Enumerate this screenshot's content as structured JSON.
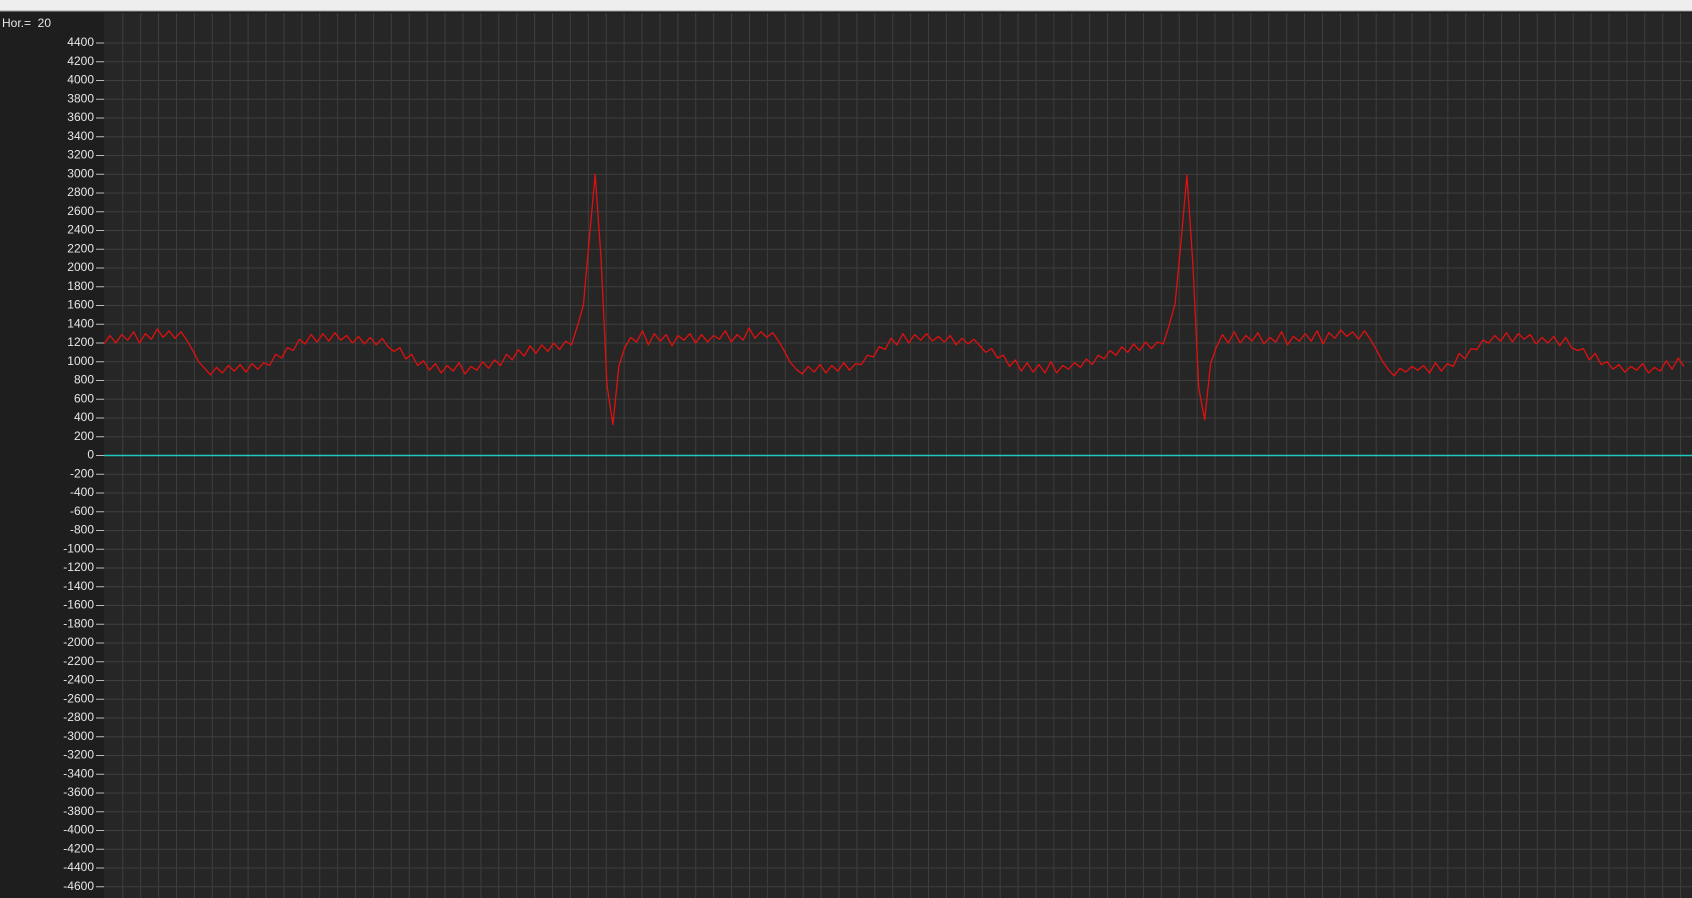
{
  "chart_data": {
    "type": "line",
    "annotation": "Hor.=  20",
    "ylim": [
      -4720,
      4720
    ],
    "yticks": [
      4400,
      4200,
      4000,
      3800,
      3600,
      3400,
      3200,
      3000,
      2800,
      2600,
      2400,
      2200,
      2000,
      1800,
      1600,
      1400,
      1200,
      1000,
      800,
      600,
      400,
      200,
      0,
      -200,
      -400,
      -600,
      -800,
      -1000,
      -1200,
      -1400,
      -1600,
      -1800,
      -2000,
      -2200,
      -2400,
      -2600,
      -2800,
      -3000,
      -3200,
      -3400,
      -3600,
      -3800,
      -4000,
      -4200,
      -4400,
      -4600
    ],
    "grid": true,
    "reference_line": {
      "value": 0,
      "color": "#1fc8c0"
    },
    "series": [
      {
        "color": "#e01010",
        "values": [
          1190,
          1280,
          1200,
          1290,
          1230,
          1320,
          1200,
          1300,
          1240,
          1350,
          1260,
          1330,
          1250,
          1320,
          1230,
          1120,
          1000,
          930,
          860,
          940,
          880,
          960,
          900,
          970,
          890,
          980,
          920,
          990,
          960,
          1080,
          1040,
          1150,
          1120,
          1240,
          1190,
          1290,
          1210,
          1300,
          1220,
          1310,
          1230,
          1280,
          1200,
          1270,
          1190,
          1260,
          1180,
          1250,
          1160,
          1110,
          1150,
          1030,
          1080,
          960,
          1010,
          910,
          980,
          880,
          960,
          900,
          990,
          870,
          950,
          910,
          1000,
          930,
          1020,
          960,
          1080,
          1020,
          1130,
          1060,
          1170,
          1090,
          1180,
          1110,
          1200,
          1130,
          1220,
          1180,
          1380,
          1600,
          2300,
          3000,
          2100,
          750,
          330,
          950,
          1150,
          1260,
          1210,
          1330,
          1180,
          1300,
          1220,
          1290,
          1170,
          1280,
          1230,
          1300,
          1200,
          1290,
          1210,
          1280,
          1240,
          1330,
          1210,
          1290,
          1230,
          1360,
          1250,
          1320,
          1260,
          1310,
          1220,
          1110,
          990,
          920,
          870,
          950,
          890,
          970,
          880,
          960,
          900,
          990,
          910,
          980,
          970,
          1070,
          1050,
          1160,
          1130,
          1250,
          1180,
          1300,
          1200,
          1290,
          1230,
          1300,
          1220,
          1270,
          1210,
          1280,
          1180,
          1250,
          1190,
          1240,
          1170,
          1100,
          1140,
          1040,
          1070,
          950,
          1020,
          900,
          990,
          890,
          970,
          880,
          1000,
          880,
          960,
          920,
          990,
          940,
          1030,
          970,
          1070,
          1030,
          1120,
          1070,
          1160,
          1100,
          1190,
          1120,
          1210,
          1140,
          1210,
          1190,
          1390,
          1620,
          2280,
          2990,
          2050,
          720,
          380,
          980,
          1160,
          1290,
          1200,
          1320,
          1200,
          1280,
          1220,
          1310,
          1190,
          1260,
          1210,
          1320,
          1180,
          1270,
          1220,
          1300,
          1220,
          1330,
          1190,
          1310,
          1250,
          1340,
          1270,
          1320,
          1240,
          1330,
          1240,
          1130,
          1010,
          920,
          850,
          930,
          890,
          950,
          910,
          960,
          880,
          990,
          900,
          980,
          950,
          1090,
          1030,
          1140,
          1130,
          1230,
          1200,
          1280,
          1220,
          1310,
          1210,
          1300,
          1240,
          1290,
          1190,
          1260,
          1200,
          1270,
          1170,
          1260,
          1150,
          1120,
          1140,
          1020,
          1090,
          970,
          1000,
          920,
          970,
          890,
          950,
          910,
          980,
          880,
          940,
          900,
          1010,
          920,
          1040,
          950
        ]
      }
    ]
  }
}
